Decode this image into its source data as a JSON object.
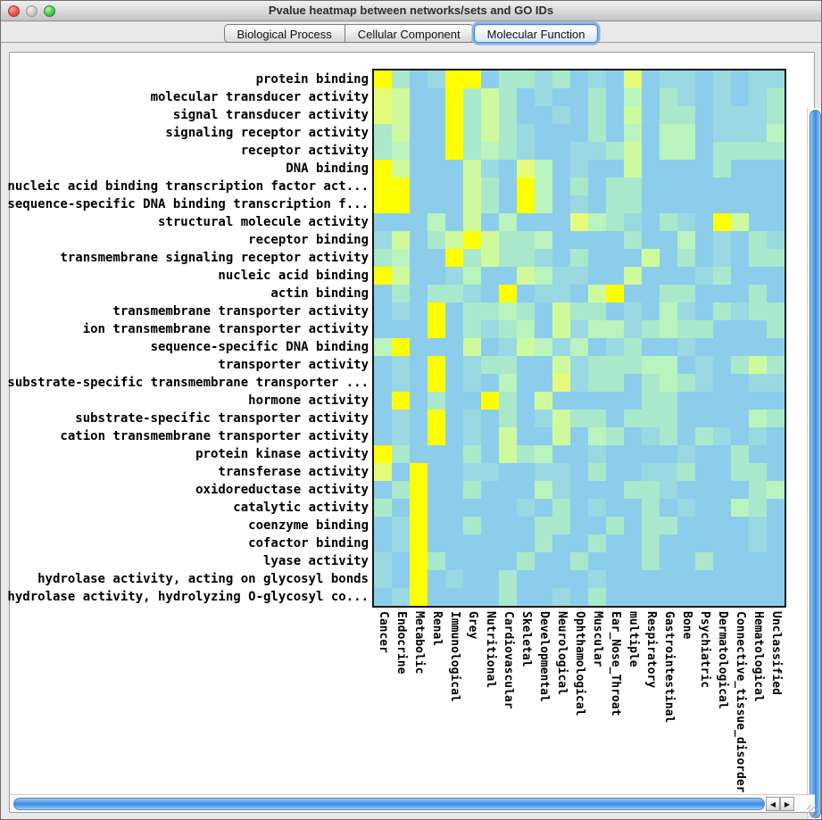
{
  "window": {
    "title": "Pvalue heatmap between networks/sets and GO IDs"
  },
  "tabs": [
    {
      "label": "Biological Process",
      "selected": false
    },
    {
      "label": "Cellular Component",
      "selected": false
    },
    {
      "label": "Molecular Function",
      "selected": true
    }
  ],
  "scrollbar_icons": {
    "up": "▲",
    "down": "▼",
    "left": "◀",
    "right": "▶"
  },
  "titlebar_icons": {
    "close": "close-circle",
    "minimize": "minimize-circle",
    "zoom": "zoom-circle"
  },
  "chart_data": {
    "type": "heatmap",
    "title": "Pvalue heatmap between networks/sets and GO IDs (Molecular Function)",
    "note": "Cell values are qualitative color levels estimated from pixels: 0 = light blue (least significant) through 6 = bright yellow (most significant p-value). No numeric scale is shown in the image.",
    "palette": [
      "#8CCDEC",
      "#9AD8E2",
      "#A9E8CB",
      "#B9F3BE",
      "#CEFA9D",
      "#E4FB7B",
      "#FDFF00"
    ],
    "rows": [
      "protein binding",
      "molecular transducer activity",
      "signal transducer activity",
      "signaling receptor activity",
      "receptor activity",
      "DNA binding",
      "nucleic acid binding transcription factor act...",
      "sequence-specific DNA binding transcription f...",
      "structural molecule activity",
      "receptor binding",
      "transmembrane signaling receptor activity",
      "nucleic acid binding",
      "actin binding",
      "transmembrane transporter activity",
      "ion transmembrane transporter activity",
      "sequence-specific DNA binding",
      "transporter activity",
      "substrate-specific transmembrane transporter ...",
      "hormone activity",
      "substrate-specific transporter activity",
      "cation transmembrane transporter activity",
      "protein kinase activity",
      "transferase activity",
      "oxidoreductase activity",
      "catalytic activity",
      "coenzyme binding",
      "cofactor binding",
      "lyase activity",
      "hydrolase activity, acting on glycosyl bonds",
      "hydrolase activity, hydrolyzing O-glycosyl co..."
    ],
    "cols": [
      "Cancer",
      "Endocrine",
      "Metabolic",
      "Renal",
      "Immunological",
      "Grey",
      "Nutritional",
      "Cardiovascular",
      "Skeletal",
      "Developmental",
      "Neurological",
      "Ophthamological",
      "Muscular",
      "Ear_Nose_Throat",
      "multiple",
      "Respiratory",
      "Gastrointestinal",
      "Bone",
      "Psychiatric",
      "Dermatological",
      "Connective_tissue_disorder",
      "Hematological",
      "Unclassified"
    ],
    "grid": [
      [
        6,
        2,
        0,
        1,
        6,
        6,
        0,
        2,
        2,
        1,
        2,
        0,
        1,
        0,
        5,
        0,
        1,
        1,
        0,
        1,
        0,
        1,
        1
      ],
      [
        5,
        4,
        0,
        0,
        6,
        2,
        4,
        2,
        0,
        1,
        0,
        0,
        2,
        0,
        3,
        0,
        2,
        1,
        0,
        1,
        0,
        1,
        2
      ],
      [
        5,
        4,
        0,
        0,
        6,
        2,
        4,
        2,
        0,
        0,
        1,
        0,
        2,
        0,
        4,
        0,
        2,
        2,
        0,
        1,
        1,
        1,
        2
      ],
      [
        2,
        4,
        0,
        0,
        6,
        2,
        4,
        2,
        1,
        0,
        0,
        0,
        2,
        0,
        3,
        0,
        3,
        3,
        0,
        1,
        1,
        1,
        3
      ],
      [
        2,
        3,
        0,
        0,
        6,
        2,
        3,
        2,
        1,
        0,
        0,
        1,
        1,
        2,
        4,
        0,
        3,
        3,
        0,
        2,
        2,
        2,
        2
      ],
      [
        6,
        4,
        0,
        0,
        0,
        4,
        1,
        0,
        5,
        3,
        0,
        1,
        0,
        0,
        4,
        0,
        0,
        0,
        0,
        2,
        0,
        0,
        0
      ],
      [
        6,
        6,
        0,
        0,
        0,
        4,
        2,
        0,
        6,
        3,
        0,
        2,
        0,
        2,
        2,
        0,
        0,
        0,
        0,
        0,
        0,
        0,
        0
      ],
      [
        6,
        6,
        0,
        0,
        0,
        4,
        2,
        0,
        6,
        3,
        0,
        1,
        0,
        2,
        2,
        0,
        0,
        0,
        0,
        0,
        0,
        0,
        0
      ],
      [
        0,
        0,
        0,
        3,
        0,
        4,
        0,
        3,
        0,
        0,
        0,
        5,
        3,
        2,
        1,
        0,
        2,
        1,
        0,
        6,
        4,
        0,
        0
      ],
      [
        1,
        4,
        0,
        2,
        4,
        6,
        4,
        2,
        2,
        3,
        0,
        0,
        0,
        0,
        2,
        0,
        0,
        3,
        0,
        1,
        0,
        2,
        1
      ],
      [
        2,
        3,
        0,
        0,
        6,
        2,
        4,
        2,
        2,
        1,
        0,
        2,
        0,
        0,
        0,
        4,
        0,
        2,
        0,
        1,
        0,
        2,
        2
      ],
      [
        6,
        4,
        0,
        0,
        1,
        3,
        0,
        0,
        4,
        3,
        1,
        1,
        0,
        0,
        4,
        0,
        0,
        0,
        1,
        2,
        0,
        0,
        0
      ],
      [
        0,
        2,
        0,
        2,
        2,
        1,
        0,
        6,
        0,
        1,
        1,
        0,
        4,
        6,
        0,
        0,
        2,
        2,
        0,
        0,
        0,
        2,
        0
      ],
      [
        0,
        1,
        0,
        6,
        0,
        2,
        2,
        3,
        2,
        0,
        4,
        2,
        2,
        0,
        1,
        0,
        3,
        1,
        0,
        2,
        1,
        2,
        2
      ],
      [
        0,
        0,
        0,
        6,
        0,
        2,
        1,
        2,
        3,
        0,
        4,
        1,
        3,
        3,
        1,
        2,
        3,
        2,
        2,
        0,
        0,
        0,
        2
      ],
      [
        3,
        6,
        0,
        0,
        0,
        4,
        0,
        1,
        4,
        3,
        1,
        3,
        0,
        1,
        2,
        0,
        0,
        1,
        0,
        0,
        0,
        0,
        0
      ],
      [
        0,
        1,
        0,
        6,
        0,
        1,
        2,
        2,
        0,
        0,
        4,
        1,
        2,
        2,
        2,
        3,
        3,
        0,
        1,
        0,
        2,
        4,
        2
      ],
      [
        0,
        1,
        0,
        6,
        0,
        1,
        0,
        3,
        0,
        0,
        5,
        1,
        2,
        2,
        0,
        2,
        3,
        2,
        1,
        0,
        0,
        1,
        1
      ],
      [
        0,
        6,
        0,
        2,
        0,
        0,
        6,
        2,
        0,
        4,
        0,
        0,
        0,
        0,
        0,
        2,
        2,
        0,
        0,
        0,
        0,
        0,
        0
      ],
      [
        0,
        1,
        0,
        6,
        0,
        1,
        0,
        2,
        0,
        1,
        4,
        2,
        2,
        0,
        2,
        2,
        2,
        0,
        0,
        0,
        0,
        3,
        2
      ],
      [
        0,
        1,
        0,
        6,
        0,
        1,
        0,
        4,
        0,
        0,
        4,
        0,
        3,
        2,
        0,
        1,
        2,
        0,
        2,
        1,
        0,
        1,
        0
      ],
      [
        6,
        2,
        0,
        0,
        0,
        2,
        0,
        4,
        2,
        3,
        0,
        0,
        1,
        0,
        0,
        0,
        0,
        1,
        0,
        0,
        2,
        0,
        0
      ],
      [
        5,
        0,
        6,
        0,
        0,
        1,
        1,
        0,
        0,
        1,
        1,
        0,
        2,
        0,
        0,
        1,
        1,
        2,
        0,
        0,
        2,
        2,
        0
      ],
      [
        0,
        2,
        6,
        0,
        0,
        2,
        0,
        0,
        0,
        3,
        1,
        0,
        0,
        0,
        2,
        2,
        1,
        0,
        0,
        0,
        0,
        2,
        3
      ],
      [
        2,
        0,
        6,
        0,
        0,
        0,
        0,
        0,
        1,
        0,
        2,
        0,
        1,
        0,
        0,
        2,
        0,
        1,
        0,
        0,
        3,
        2,
        0
      ],
      [
        0,
        1,
        6,
        0,
        0,
        2,
        0,
        0,
        0,
        2,
        2,
        0,
        0,
        2,
        0,
        2,
        2,
        0,
        0,
        0,
        0,
        1,
        0
      ],
      [
        0,
        1,
        6,
        0,
        0,
        0,
        0,
        0,
        0,
        2,
        0,
        0,
        2,
        0,
        0,
        2,
        0,
        0,
        0,
        0,
        0,
        1,
        0
      ],
      [
        1,
        0,
        6,
        2,
        0,
        0,
        0,
        0,
        2,
        0,
        0,
        2,
        0,
        0,
        0,
        2,
        0,
        0,
        2,
        0,
        0,
        0,
        0
      ],
      [
        1,
        0,
        6,
        0,
        1,
        0,
        0,
        2,
        0,
        0,
        0,
        0,
        1,
        0,
        0,
        0,
        0,
        0,
        0,
        0,
        0,
        0,
        0
      ],
      [
        0,
        1,
        6,
        0,
        0,
        0,
        0,
        2,
        0,
        0,
        1,
        0,
        2,
        0,
        0,
        0,
        0,
        0,
        0,
        0,
        0,
        0,
        0
      ]
    ]
  }
}
